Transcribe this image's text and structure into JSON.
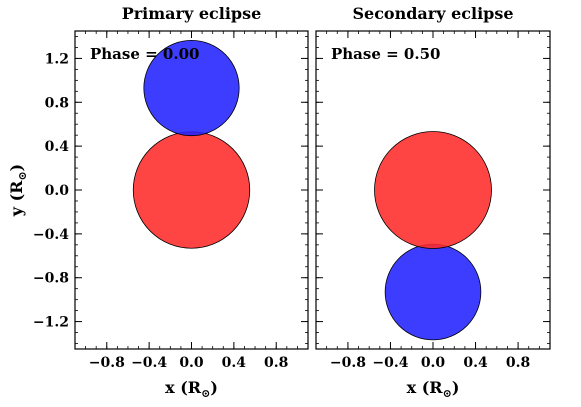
{
  "chart_data": [
    {
      "type": "scatter",
      "title": "Primary eclipse",
      "annotation": "Phase = 0.00",
      "xlabel": "x (R",
      "ylabel": "y (R",
      "label_unit_symbol": "⊙",
      "xlim": [
        -1.1,
        1.1
      ],
      "ylim": [
        -1.45,
        1.45
      ],
      "x_ticks": [
        -0.8,
        -0.4,
        0.0,
        0.4,
        0.8
      ],
      "x_tick_labels": [
        "−0.8",
        "−0.4",
        "0.0",
        "0.4",
        "0.8"
      ],
      "y_ticks": [
        -1.2,
        -0.8,
        -0.4,
        0.0,
        0.4,
        0.8,
        1.2
      ],
      "y_tick_labels": [
        "−1.2",
        "−0.8",
        "−0.4",
        "0.0",
        "0.4",
        "0.8",
        "1.2"
      ],
      "grid": false,
      "stars": [
        {
          "color": "#ff2a2a",
          "x": 0.0,
          "y": 0.0,
          "radius": 0.55
        },
        {
          "color": "#2222ff",
          "x": 0.0,
          "y": 0.93,
          "radius": 0.45
        }
      ]
    },
    {
      "type": "scatter",
      "title": "Secondary eclipse",
      "annotation": "Phase = 0.50",
      "xlabel": "x (R",
      "label_unit_symbol": "⊙",
      "xlim": [
        -1.1,
        1.1
      ],
      "ylim": [
        -1.45,
        1.45
      ],
      "x_ticks": [
        -0.8,
        -0.4,
        0.0,
        0.4,
        0.8
      ],
      "x_tick_labels": [
        "−0.8",
        "−0.4",
        "0.0",
        "0.4",
        "0.8"
      ],
      "y_ticks": [
        -1.2,
        -0.8,
        -0.4,
        0.0,
        0.4,
        0.8,
        1.2
      ],
      "grid": false,
      "stars": [
        {
          "color": "#2222ff",
          "x": 0.0,
          "y": -0.93,
          "radius": 0.45
        },
        {
          "color": "#ff2a2a",
          "x": 0.0,
          "y": 0.0,
          "radius": 0.55
        }
      ]
    }
  ]
}
